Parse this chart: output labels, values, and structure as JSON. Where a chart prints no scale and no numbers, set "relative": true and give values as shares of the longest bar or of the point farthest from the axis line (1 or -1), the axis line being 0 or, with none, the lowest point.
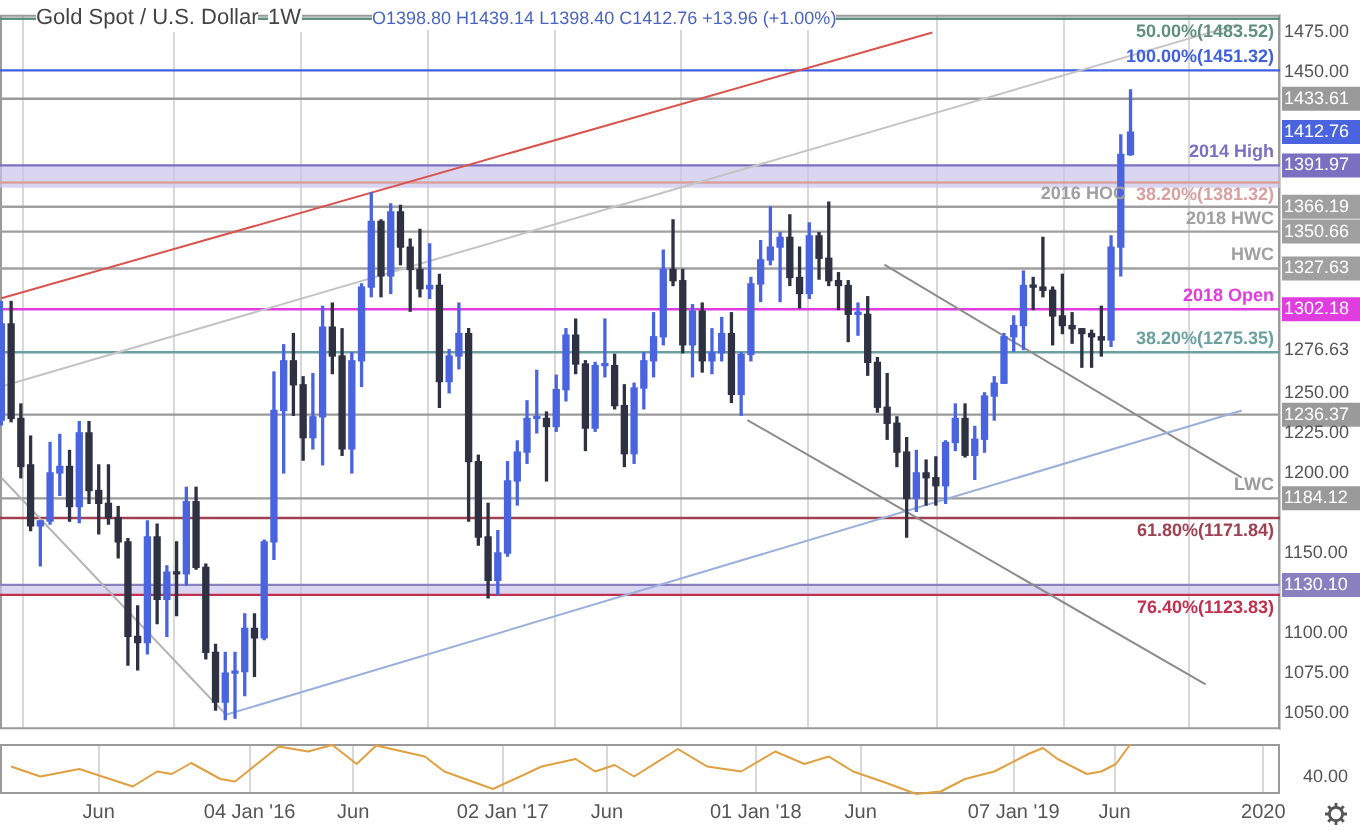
{
  "chart_data": [
    {
      "type": "candlestick",
      "title": "Gold Spot / U.S. Dollar",
      "subtitle": "1W",
      "annotations": [
        "O1398.80 H1439.14 L1398.40 C1412.76 +13.96 (+1.00%)"
      ],
      "colors": [
        "#4a64e0",
        "#2d3142",
        "#2d3142",
        "#2d3142",
        "#4a64e0",
        "#4a64e0",
        "#4a64e0",
        "#2d3142",
        "#4a64e0",
        "#2d3142",
        "#2d3142",
        "#2d3142",
        "#2d3142",
        "#2d3142",
        "#2d3142",
        "#4a64e0",
        "#2d3142",
        "#4a64e0",
        "#2d3142",
        "#4a64e0",
        "#2d3142",
        "#2d3142",
        "#2d3142",
        "#4a64e0",
        "#4a64e0",
        "#4a64e0",
        "#2d3142",
        "#4a64e0",
        "#4a64e0",
        "#4a64e0",
        "#2d3142",
        "#2d3142",
        "#4a64e0",
        "#4a64e0",
        "#2d3142",
        "#2d3142",
        "#4a64e0",
        "#4a64e0",
        "#4a64e0",
        "#2d3142",
        "#4a64e0",
        "#2d3142",
        "#2d3142",
        "#2d3142",
        "#4a64e0",
        "#2d3142",
        "#4a64e0",
        "#4a64e0",
        "#2d3142",
        "#2d3142",
        "#2d3142",
        "#4a64e0",
        "#4a64e0",
        "#4a64e0",
        "#4a64e0",
        "#4a64e0",
        "#2d3142",
        "#4a64e0",
        "#4a64e0",
        "#2d3142",
        "#2d3142",
        "#4a64e0",
        "#4a64e0",
        "#2d3142",
        "#2d3142",
        "#4a64e0",
        "#4a64e0",
        "#4a64e0",
        "#4a64e0",
        "#2d3142",
        "#2d3142",
        "#4a64e0",
        "#2d3142",
        "#4a64e0",
        "#4a64e0",
        "#2d3142",
        "#4a64e0",
        "#4a64e0",
        "#4a64e0",
        "#4a64e0",
        "#4a64e0",
        "#2d3142",
        "#2d3142",
        "#4a64e0",
        "#2d3142",
        "#2d3142",
        "#2d3142",
        "#2d3142",
        "#4a64e0",
        "#2d3142",
        "#2d3142",
        "#2d3142",
        "#2d3142",
        "#2d3142",
        "#4a64e0",
        "#2d3142",
        "#2d3142",
        "#4a64e0",
        "#4a64e0",
        "#2d3142",
        "#4a64e0",
        "#4a64e0",
        "#4a64e0",
        "#4a64e0",
        "#4a64e0",
        "#4a64e0",
        "#2d3142",
        "#2d3142",
        "#2d3142",
        "#2d3142",
        "#2d3142",
        "#2d3142",
        "#2d3142",
        "#2d3142",
        "#4a64e0",
        "#4a64e0",
        "#4a64e0"
      ],
      "x": [
        "2015-01-12",
        "2015-01-26",
        "2015-02-09",
        "2015-02-23",
        "2015-03-09",
        "2015-03-23",
        "2015-04-06",
        "2015-04-20",
        "2015-05-04",
        "2015-05-18",
        "2015-06-01",
        "2015-06-15",
        "2015-06-29",
        "2015-07-13",
        "2015-07-27",
        "2015-08-10",
        "2015-08-24",
        "2015-09-07",
        "2015-09-21",
        "2015-10-05",
        "2015-10-19",
        "2015-11-02",
        "2015-11-16",
        "2015-11-30",
        "2015-12-14",
        "2015-12-28",
        "2016-01-11",
        "2016-01-25",
        "2016-02-08",
        "2016-02-22",
        "2016-03-07",
        "2016-03-21",
        "2016-04-04",
        "2016-04-18",
        "2016-05-02",
        "2016-05-16",
        "2016-05-30",
        "2016-06-13",
        "2016-06-27",
        "2016-07-11",
        "2016-07-25",
        "2016-08-08",
        "2016-08-22",
        "2016-09-05",
        "2016-09-19",
        "2016-10-03",
        "2016-10-17",
        "2016-10-31",
        "2016-11-14",
        "2016-11-28",
        "2016-12-12",
        "2016-12-26",
        "2017-01-09",
        "2017-01-23",
        "2017-02-06",
        "2017-02-20",
        "2017-03-06",
        "2017-03-20",
        "2017-04-03",
        "2017-04-17",
        "2017-05-01",
        "2017-05-15",
        "2017-05-29",
        "2017-06-12",
        "2017-06-26",
        "2017-07-10",
        "2017-07-24",
        "2017-08-07",
        "2017-08-21",
        "2017-09-04",
        "2017-09-18",
        "2017-10-02",
        "2017-10-16",
        "2017-10-30",
        "2017-11-13",
        "2017-11-27",
        "2017-12-11",
        "2017-12-25",
        "2018-01-08",
        "2018-01-22",
        "2018-02-05",
        "2018-02-19",
        "2018-03-05",
        "2018-03-19",
        "2018-04-02",
        "2018-04-16",
        "2018-04-30",
        "2018-05-14",
        "2018-05-28",
        "2018-06-11",
        "2018-06-25",
        "2018-07-09",
        "2018-07-23",
        "2018-08-06",
        "2018-08-20",
        "2018-09-03",
        "2018-09-17",
        "2018-10-01",
        "2018-10-15",
        "2018-10-29",
        "2018-11-12",
        "2018-11-26",
        "2018-12-10",
        "2018-12-24",
        "2019-01-07",
        "2019-01-21",
        "2019-02-04",
        "2019-02-18",
        "2019-03-04",
        "2019-03-18",
        "2019-04-01",
        "2019-04-15",
        "2019-04-29",
        "2019-05-13",
        "2019-05-27",
        "2019-06-10",
        "2019-06-24"
      ],
      "ohlc": [
        [
          1233,
          1307,
          1230,
          1293
        ],
        [
          1293,
          1307,
          1232,
          1234
        ],
        [
          1234,
          1243,
          1197,
          1204
        ],
        [
          1205,
          1223,
          1164,
          1167
        ],
        [
          1167,
          1170,
          1142,
          1170
        ],
        [
          1170,
          1219,
          1168,
          1200
        ],
        [
          1200,
          1224,
          1186,
          1204
        ],
        [
          1204,
          1214,
          1170,
          1179
        ],
        [
          1179,
          1232,
          1169,
          1225
        ],
        [
          1225,
          1232,
          1181,
          1189
        ],
        [
          1189,
          1205,
          1162,
          1181
        ],
        [
          1181,
          1205,
          1168,
          1172
        ],
        [
          1172,
          1179,
          1147,
          1157
        ],
        [
          1157,
          1159,
          1080,
          1098
        ],
        [
          1098,
          1117,
          1077,
          1094
        ],
        [
          1094,
          1170,
          1087,
          1160
        ],
        [
          1160,
          1168,
          1106,
          1121
        ],
        [
          1121,
          1142,
          1098,
          1138
        ],
        [
          1138,
          1157,
          1111,
          1137
        ],
        [
          1137,
          1191,
          1130,
          1182
        ],
        [
          1182,
          1191,
          1140,
          1141
        ],
        [
          1141,
          1143,
          1084,
          1088
        ],
        [
          1088,
          1093,
          1052,
          1057
        ],
        [
          1057,
          1088,
          1046,
          1075
        ],
        [
          1075,
          1088,
          1047,
          1076
        ],
        [
          1076,
          1112,
          1061,
          1103
        ],
        [
          1103,
          1112,
          1073,
          1097
        ],
        [
          1097,
          1158,
          1096,
          1157
        ],
        [
          1157,
          1263,
          1146,
          1239
        ],
        [
          1239,
          1280,
          1200,
          1270
        ],
        [
          1270,
          1287,
          1236,
          1255
        ],
        [
          1255,
          1260,
          1208,
          1222
        ],
        [
          1222,
          1262,
          1215,
          1235
        ],
        [
          1235,
          1304,
          1205,
          1291
        ],
        [
          1291,
          1306,
          1262,
          1273
        ],
        [
          1273,
          1290,
          1211,
          1215
        ],
        [
          1215,
          1275,
          1200,
          1270
        ],
        [
          1270,
          1318,
          1254,
          1316
        ],
        [
          1316,
          1375,
          1310,
          1357
        ],
        [
          1357,
          1358,
          1310,
          1323
        ],
        [
          1323,
          1368,
          1312,
          1363
        ],
        [
          1363,
          1367,
          1330,
          1341
        ],
        [
          1341,
          1346,
          1301,
          1327
        ],
        [
          1327,
          1352,
          1310,
          1315
        ],
        [
          1315,
          1343,
          1309,
          1317
        ],
        [
          1317,
          1324,
          1241,
          1257
        ],
        [
          1257,
          1277,
          1250,
          1273
        ],
        [
          1273,
          1306,
          1265,
          1287
        ],
        [
          1287,
          1290,
          1170,
          1207
        ],
        [
          1207,
          1211,
          1155,
          1160
        ],
        [
          1160,
          1181,
          1122,
          1133
        ],
        [
          1133,
          1164,
          1124,
          1150
        ],
        [
          1150,
          1207,
          1148,
          1195
        ],
        [
          1195,
          1220,
          1180,
          1213
        ],
        [
          1213,
          1245,
          1206,
          1234
        ],
        [
          1234,
          1264,
          1225,
          1234
        ],
        [
          1234,
          1238,
          1195,
          1229
        ],
        [
          1229,
          1261,
          1226,
          1252
        ],
        [
          1252,
          1290,
          1245,
          1286
        ],
        [
          1286,
          1296,
          1262,
          1268
        ],
        [
          1268,
          1270,
          1214,
          1228
        ],
        [
          1228,
          1269,
          1226,
          1267
        ],
        [
          1267,
          1296,
          1260,
          1267
        ],
        [
          1267,
          1274,
          1240,
          1242
        ],
        [
          1242,
          1255,
          1204,
          1212
        ],
        [
          1212,
          1256,
          1206,
          1253
        ],
        [
          1253,
          1275,
          1240,
          1270
        ],
        [
          1270,
          1300,
          1260,
          1285
        ],
        [
          1285,
          1339,
          1280,
          1327
        ],
        [
          1327,
          1358,
          1317,
          1320
        ],
        [
          1320,
          1327,
          1275,
          1280
        ],
        [
          1280,
          1305,
          1260,
          1301
        ],
        [
          1301,
          1306,
          1263,
          1270
        ],
        [
          1270,
          1290,
          1262,
          1275
        ],
        [
          1275,
          1297,
          1270,
          1287
        ],
        [
          1287,
          1300,
          1244,
          1249
        ],
        [
          1249,
          1275,
          1236,
          1274
        ],
        [
          1274,
          1322,
          1270,
          1318
        ],
        [
          1318,
          1345,
          1307,
          1333
        ],
        [
          1333,
          1366,
          1330,
          1341
        ],
        [
          1341,
          1350,
          1307,
          1347
        ],
        [
          1347,
          1361,
          1317,
          1322
        ],
        [
          1322,
          1341,
          1303,
          1312
        ],
        [
          1312,
          1356,
          1309,
          1348
        ],
        [
          1348,
          1350,
          1321,
          1334
        ],
        [
          1334,
          1369,
          1317,
          1320
        ],
        [
          1320,
          1325,
          1302,
          1317
        ],
        [
          1317,
          1320,
          1282,
          1299
        ],
        [
          1299,
          1306,
          1286,
          1299
        ],
        [
          1299,
          1310,
          1261,
          1269
        ],
        [
          1269,
          1272,
          1238,
          1241
        ],
        [
          1241,
          1262,
          1221,
          1231
        ],
        [
          1231,
          1235,
          1204,
          1213
        ],
        [
          1213,
          1222,
          1160,
          1184
        ],
        [
          1184,
          1214,
          1176,
          1200
        ],
        [
          1200,
          1208,
          1180,
          1197
        ],
        [
          1197,
          1210,
          1180,
          1192
        ],
        [
          1192,
          1220,
          1181,
          1219
        ],
        [
          1219,
          1243,
          1214,
          1234
        ],
        [
          1234,
          1243,
          1210,
          1211
        ],
        [
          1211,
          1229,
          1196,
          1221
        ],
        [
          1221,
          1250,
          1213,
          1248
        ],
        [
          1248,
          1260,
          1233,
          1256
        ],
        [
          1256,
          1287,
          1256,
          1285
        ],
        [
          1285,
          1298,
          1276,
          1292
        ],
        [
          1292,
          1326,
          1277,
          1317
        ],
        [
          1317,
          1322,
          1302,
          1316
        ],
        [
          1316,
          1347,
          1310,
          1314
        ],
        [
          1314,
          1316,
          1280,
          1298
        ],
        [
          1298,
          1324,
          1287,
          1292
        ],
        [
          1292,
          1300,
          1281,
          1290
        ],
        [
          1290,
          1290,
          1266,
          1287
        ],
        [
          1287,
          1289,
          1266,
          1285
        ],
        [
          1285,
          1304,
          1273,
          1283
        ],
        [
          1283,
          1348,
          1279,
          1341
        ],
        [
          1341,
          1411,
          1323,
          1398.8
        ],
        [
          1398.8,
          1439.14,
          1398.4,
          1412.76
        ]
      ],
      "series": [
        {
          "type": "line",
          "color": "#d9534f",
          "x": [
            "2015-01-12",
            "2018-09-12"
          ],
          "values": [
            1309,
            1475
          ]
        },
        {
          "type": "line",
          "color": "#9ab0dc",
          "x": [
            "2015-12-01",
            "2019-12-01"
          ],
          "values": [
            1049,
            1239
          ]
        },
        {
          "type": "line",
          "color": "#c4c4c4",
          "x": [
            "2015-01-12",
            "2019-11-25"
          ],
          "values": [
            1254,
            1480
          ]
        },
        {
          "type": "line",
          "color": "#8c8c8c",
          "x": [
            "2018-07-05",
            "2019-12-01"
          ],
          "values": [
            1330,
            1197
          ]
        },
        {
          "type": "line",
          "color": "#8c8c8c",
          "x": [
            "2017-12-20",
            "2019-10-10"
          ],
          "values": [
            1233,
            1068
          ]
        },
        {
          "type": "line",
          "color": "#b4b4b4",
          "x": [
            "2015-01-12",
            "2015-12-01"
          ],
          "values": [
            1197,
            1049
          ]
        }
      ],
      "xlim": [
        "2015-01-10",
        "2020-01-25"
      ],
      "xticks": [
        {
          "value": "2015-06-01",
          "label": null
        },
        {
          "value": "2016-01-04",
          "label": null
        },
        {
          "value": "2016-06-01",
          "label": null
        },
        {
          "value": "2017-01-02",
          "label": null
        },
        {
          "value": "2017-06-01",
          "label": null
        },
        {
          "value": "2018-01-01",
          "label": null
        },
        {
          "value": "2018-06-01",
          "label": null
        },
        {
          "value": "2019-01-07",
          "label": null
        },
        {
          "value": "2019-06-01",
          "label": null
        },
        {
          "value": "2020-01-01",
          "label": null
        }
      ],
      "ylim": [
        1040,
        1486
      ],
      "yticks": [
        {
          "value": 1050,
          "label": "1050.00"
        },
        {
          "value": 1075,
          "label": "1075.00"
        },
        {
          "value": 1100,
          "label": "1100.00"
        },
        {
          "value": 1130.1,
          "label": "1130.10"
        },
        {
          "value": 1150,
          "label": "1150.00"
        },
        {
          "value": 1184.12,
          "label": "1184.12"
        },
        {
          "value": 1200,
          "label": "1200.00"
        },
        {
          "value": 1225,
          "label": "1225.00"
        },
        {
          "value": 1236.37,
          "label": "1236.37"
        },
        {
          "value": 1250,
          "label": "1250.00"
        },
        {
          "value": 1276.63,
          "label": "1276.63"
        },
        {
          "value": 1302.18,
          "label": "1302.18"
        },
        {
          "value": 1327.63,
          "label": "1327.63"
        },
        {
          "value": 1350.66,
          "label": "1350.66"
        },
        {
          "value": 1366.19,
          "label": "1366.19"
        },
        {
          "value": 1391.97,
          "label": "1391.97"
        },
        {
          "value": 1412.76,
          "label": "1412.76"
        },
        {
          "value": 1433.61,
          "label": "1433.61"
        },
        {
          "value": 1450,
          "label": "1450.00"
        },
        {
          "value": 1475,
          "label": "1475.00"
        }
      ],
      "ref_lines": [
        {
          "axis": "y",
          "value": 1483.52,
          "label": "50.00%(1483.52)",
          "color": "#5f8f7f"
        },
        {
          "axis": "y",
          "value": 1451.32,
          "label": "100.00%(1451.32)",
          "color": "#3f5fe0"
        },
        {
          "axis": "y",
          "value": 1433.61,
          "label": null,
          "color": "#9a9a9a"
        },
        {
          "axis": "y",
          "value": 1391.97,
          "label": "2014 High",
          "color": "#7a6fc0"
        },
        {
          "axis": "y",
          "value": 1381.32,
          "label": "38.20%(1381.32)",
          "color": "#d9a0a0"
        },
        {
          "axis": "y",
          "value": 1366.19,
          "label": "2016 HOC",
          "color": "#a0a0a0"
        },
        {
          "axis": "y",
          "value": 1350.66,
          "label": "2018 HWC",
          "color": "#a0a0a0"
        },
        {
          "axis": "y",
          "value": 1327.63,
          "label": "HWC",
          "color": "#a0a0a0"
        },
        {
          "axis": "y",
          "value": 1302.18,
          "label": "2018 Open",
          "color": "#e03ce0"
        },
        {
          "axis": "y",
          "value": 1275.35,
          "label": "38.20%(1275.35)",
          "color": "#6aa0a0"
        },
        {
          "axis": "y",
          "value": 1236.37,
          "label": null,
          "color": "#9a9a9a"
        },
        {
          "axis": "y",
          "value": 1184.12,
          "label": "LWC",
          "color": "#9a9a9a"
        },
        {
          "axis": "y",
          "value": 1171.84,
          "label": "61.80%(1171.84)",
          "color": "#a04050"
        },
        {
          "axis": "y",
          "value": 1130.1,
          "label": null,
          "color": "#8a80c0"
        },
        {
          "axis": "y",
          "value": 1123.83,
          "label": "76.40%(1123.83)",
          "color": "#c03050"
        }
      ],
      "bands": [
        {
          "axis": "y",
          "from": 1378,
          "to": 1391.97,
          "color": "#cbc3ea"
        },
        {
          "axis": "y",
          "from": 1123.83,
          "to": 1130.1,
          "color": "#cbc3ea"
        }
      ],
      "grid": "x",
      "tick_labels": "y"
    },
    {
      "type": "line",
      "relative": true,
      "color": "#e0a040",
      "grid": "x",
      "tick_labels": "x",
      "annotations": [
        "40.00"
      ],
      "x": [
        "2015-01-26",
        "2015-03-09",
        "2015-05-04",
        "2015-07-20",
        "2015-08-24",
        "2015-09-14",
        "2015-10-12",
        "2015-11-23",
        "2015-12-14",
        "2016-02-15",
        "2016-03-28",
        "2016-05-02",
        "2016-06-06",
        "2016-07-04",
        "2016-09-12",
        "2016-10-10",
        "2016-12-19",
        "2017-02-27",
        "2017-04-17",
        "2017-05-15",
        "2017-06-12",
        "2017-07-10",
        "2017-09-11",
        "2017-10-23",
        "2017-12-11",
        "2018-01-29",
        "2018-03-12",
        "2018-04-16",
        "2018-05-21",
        "2018-07-02",
        "2018-08-20",
        "2018-09-24",
        "2018-10-29",
        "2018-12-10",
        "2019-01-28",
        "2019-02-18",
        "2019-03-11",
        "2019-04-22",
        "2019-05-13",
        "2019-06-03",
        "2019-06-24"
      ],
      "values": [
        0.55,
        0.35,
        0.5,
        0.15,
        0.45,
        0.4,
        0.62,
        0.3,
        0.25,
        0.95,
        0.85,
        0.98,
        0.6,
        0.97,
        0.75,
        0.45,
        0.1,
        0.55,
        0.7,
        0.45,
        0.58,
        0.35,
        0.9,
        0.55,
        0.45,
        0.85,
        0.6,
        0.75,
        0.45,
        0.25,
        0,
        0.05,
        0.3,
        0.45,
        0.8,
        0.92,
        0.7,
        0.4,
        0.45,
        0.6,
        1
      ],
      "xlim": [
        "2015-01-10",
        "2020-01-25"
      ],
      "xticks": [
        {
          "value": "2015-06-01",
          "label": "Jun"
        },
        {
          "value": "2016-01-04",
          "label": "04 Jan '16"
        },
        {
          "value": "2016-06-01",
          "label": "Jun"
        },
        {
          "value": "2017-01-02",
          "label": "02 Jan '17"
        },
        {
          "value": "2017-06-01",
          "label": "Jun"
        },
        {
          "value": "2018-01-01",
          "label": "01 Jan '18"
        },
        {
          "value": "2018-06-01",
          "label": "Jun"
        },
        {
          "value": "2019-01-07",
          "label": "07 Jan '19"
        },
        {
          "value": "2019-06-01",
          "label": "Jun"
        },
        {
          "value": "2020-01-01",
          "label": "2020"
        }
      ]
    }
  ]
}
